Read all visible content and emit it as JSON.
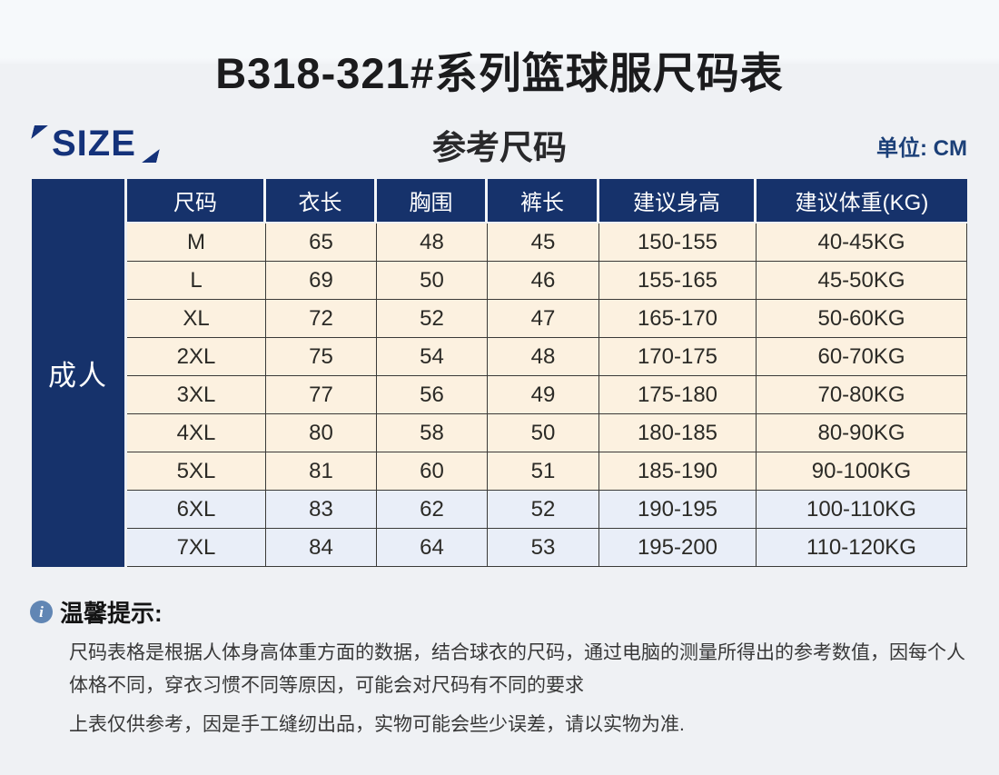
{
  "page": {
    "title": "B318-321#系列篮球服尺码表",
    "size_logo": "SIZE",
    "section_heading": "参考尺码",
    "unit_label": "单位: CM"
  },
  "table": {
    "group_label": "成人",
    "headers": [
      "尺码",
      "衣长",
      "胸围",
      "裤长",
      "建议身高",
      "建议体重(KG)"
    ],
    "rows": [
      {
        "cells": [
          "M",
          "65",
          "48",
          "45",
          "150-155",
          "40-45KG"
        ],
        "highlight": false
      },
      {
        "cells": [
          "L",
          "69",
          "50",
          "46",
          "155-165",
          "45-50KG"
        ],
        "highlight": false
      },
      {
        "cells": [
          "XL",
          "72",
          "52",
          "47",
          "165-170",
          "50-60KG"
        ],
        "highlight": false
      },
      {
        "cells": [
          "2XL",
          "75",
          "54",
          "48",
          "170-175",
          "60-70KG"
        ],
        "highlight": false
      },
      {
        "cells": [
          "3XL",
          "77",
          "56",
          "49",
          "175-180",
          "70-80KG"
        ],
        "highlight": false
      },
      {
        "cells": [
          "4XL",
          "80",
          "58",
          "50",
          "180-185",
          "80-90KG"
        ],
        "highlight": false
      },
      {
        "cells": [
          "5XL",
          "81",
          "60",
          "51",
          "185-190",
          "90-100KG"
        ],
        "highlight": false
      },
      {
        "cells": [
          "6XL",
          "83",
          "62",
          "52",
          "190-195",
          "100-110KG"
        ],
        "highlight": true
      },
      {
        "cells": [
          "7XL",
          "84",
          "64",
          "53",
          "195-200",
          "110-120KG"
        ],
        "highlight": true
      }
    ]
  },
  "tips": {
    "icon_glyph": "i",
    "title": "温馨提示:",
    "paragraphs": [
      "尺码表格是根据人体身高体重方面的数据，结合球衣的尺码，通过电脑的测量所得出的参考数值，因每个人体格不同，穿衣习惯不同等原因，可能会对尺码有不同的要求",
      "上表仅供参考，因是手工缝纫出品，实物可能会些少误差，请以实物为准."
    ]
  },
  "colors": {
    "navy": "#16326b",
    "cream_row": "#fcf1e0",
    "blue_row": "#e9eef8",
    "unit_blue": "#1c4078",
    "info_icon_blue": "#6186b4"
  }
}
